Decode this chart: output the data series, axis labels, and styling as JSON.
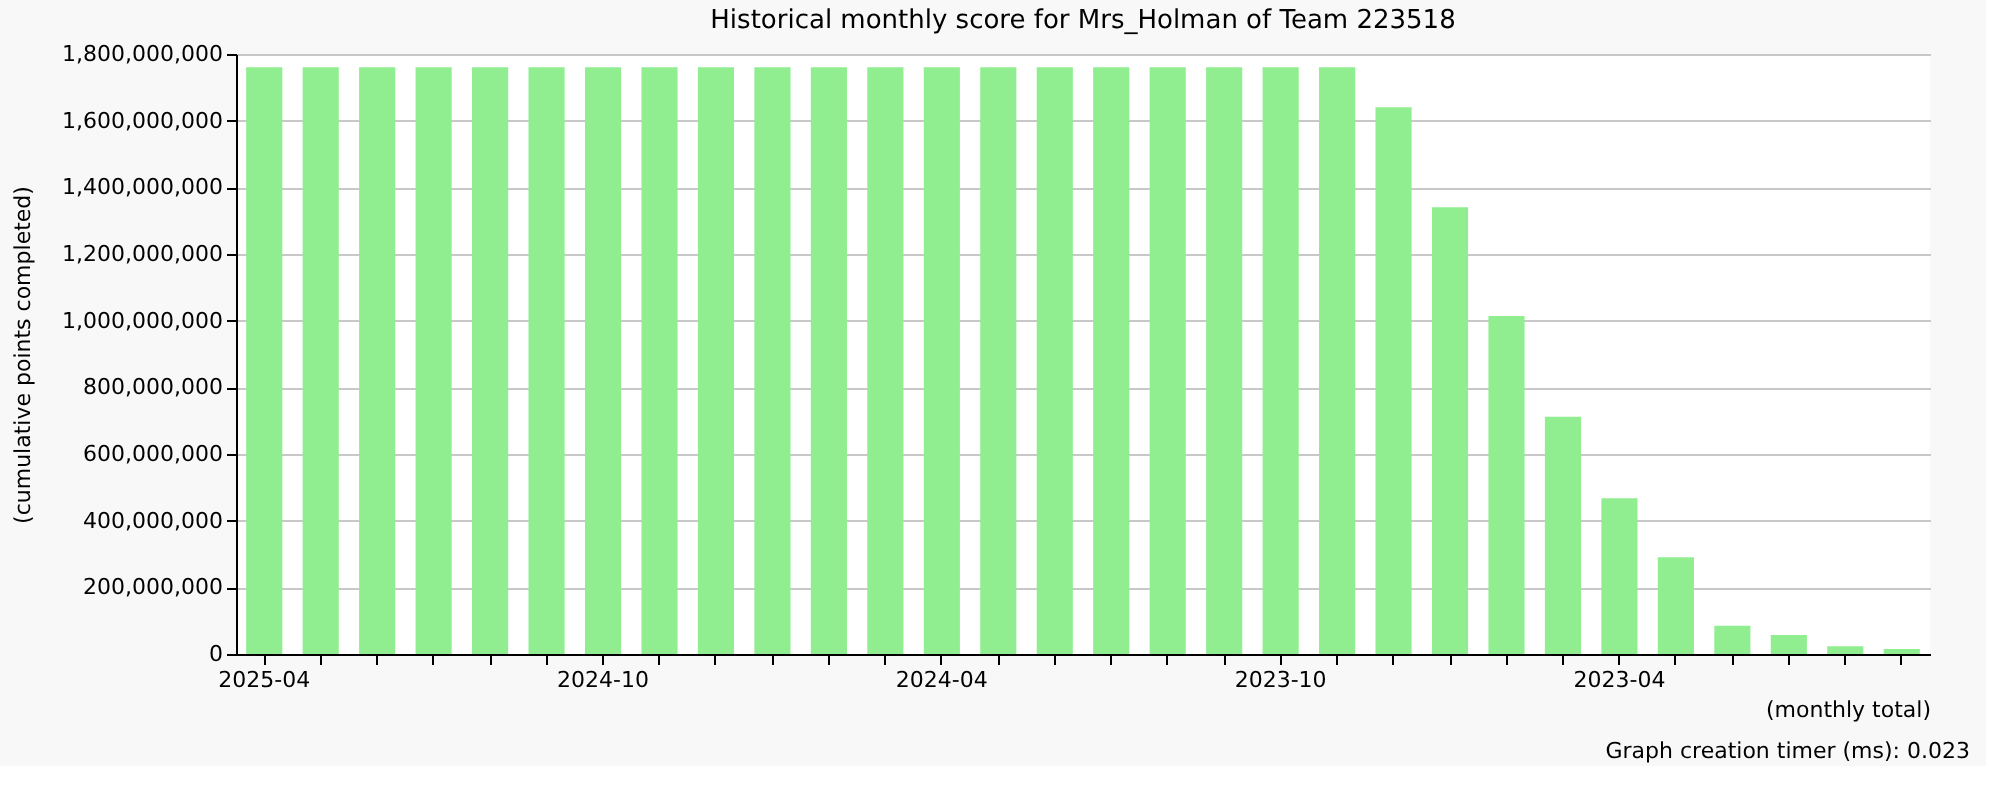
{
  "chart_data": {
    "type": "bar",
    "title": "Historical monthly score for Mrs_Holman of Team 223518",
    "xlabel": "(monthly total)",
    "ylabel": "(cumulative points completed)",
    "categories": [
      "2025-04",
      null,
      null,
      null,
      null,
      null,
      "2024-10",
      null,
      null,
      null,
      null,
      null,
      "2024-04",
      null,
      null,
      null,
      null,
      null,
      "2023-10",
      null,
      null,
      null,
      null,
      null,
      "2023-04",
      null,
      null,
      null,
      null,
      null
    ],
    "values": [
      1760000000,
      1760000000,
      1760000000,
      1760000000,
      1760000000,
      1760000000,
      1760000000,
      1760000000,
      1760000000,
      1760000000,
      1760000000,
      1760000000,
      1760000000,
      1760000000,
      1760000000,
      1760000000,
      1760000000,
      1760000000,
      1760000000,
      1760000000,
      1640000000,
      1340000000,
      1014000000,
      712000000,
      467000000,
      290000000,
      85000000,
      57000000,
      23000000,
      15000000
    ],
    "color": "#90ee90",
    "ylim": [
      0,
      1800000000
    ],
    "yticks": [
      0,
      {
        "value": 200000000,
        "label": "200,000,000"
      },
      {
        "value": 400000000,
        "label": "400,000,000"
      },
      {
        "value": 600000000,
        "label": "600,000,000"
      },
      {
        "value": 800000000,
        "label": "800,000,000"
      },
      {
        "value": 1000000000,
        "label": "1,000,000,000"
      },
      {
        "value": 1200000000,
        "label": "1,200,000,000"
      },
      {
        "value": 1400000000,
        "label": "1,400,000,000"
      },
      {
        "value": 1600000000,
        "label": "1,600,000,000"
      },
      {
        "value": 1800000000,
        "label": "1,800,000,000"
      }
    ],
    "grid": "y",
    "annotations": [
      "Graph creation timer (ms): 0.023"
    ]
  }
}
